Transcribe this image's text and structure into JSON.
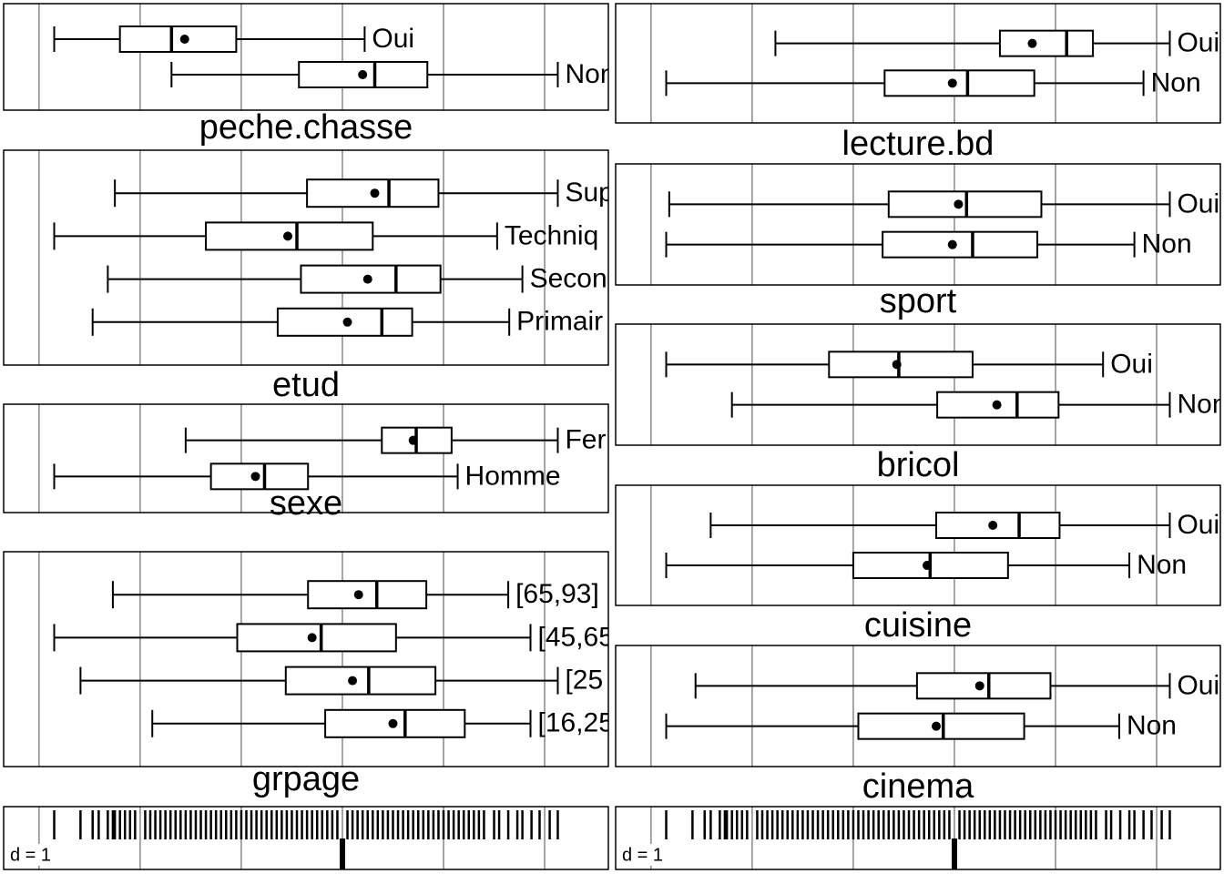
{
  "chart_data": {
    "type": "boxplot",
    "xlim": [
      -3.35,
      2.63
    ],
    "xticks": [
      -3,
      -2,
      -1,
      0,
      1,
      2
    ],
    "grid": true,
    "grid_label": "d = 1",
    "columns": [
      {
        "panels": [
          {
            "title": "peche.chasse",
            "categories": [
              "Oui",
              "Non"
            ],
            "min": [
              -2.85,
              -1.69
            ],
            "q1": [
              -2.2,
              -0.43
            ],
            "median": [
              -1.69,
              0.32
            ],
            "mean": [
              -1.56,
              0.2
            ],
            "q3": [
              -1.05,
              0.84
            ],
            "max": [
              0.22,
              2.13
            ]
          },
          {
            "title": "etud",
            "categories": [
              "Sup",
              "Techniq",
              "Secon",
              "Primair"
            ],
            "min": [
              -2.25,
              -2.85,
              -2.32,
              -2.47
            ],
            "q1": [
              -0.35,
              -1.35,
              -0.41,
              -0.64
            ],
            "median": [
              0.46,
              -0.45,
              0.53,
              0.39
            ],
            "mean": [
              0.32,
              -0.54,
              0.25,
              0.05
            ],
            "q3": [
              0.95,
              0.3,
              0.97,
              0.69
            ],
            "max": [
              2.13,
              1.53,
              1.78,
              1.65
            ]
          },
          {
            "title": "sexe",
            "categories": [
              "Fer",
              "Homme"
            ],
            "min": [
              -1.55,
              -2.85
            ],
            "q1": [
              0.39,
              -1.3
            ],
            "median": [
              0.73,
              -0.77
            ],
            "mean": [
              0.7,
              -0.86
            ],
            "q3": [
              1.08,
              -0.34
            ],
            "max": [
              2.13,
              1.14
            ]
          },
          {
            "title": "grpage",
            "categories": [
              "[65,93]",
              "[45,65",
              "[25",
              "[16,25"
            ],
            "min": [
              -2.27,
              -2.85,
              -2.59,
              -1.88
            ],
            "q1": [
              -0.34,
              -1.04,
              -0.56,
              -0.17
            ],
            "median": [
              0.34,
              -0.21,
              0.26,
              0.62
            ],
            "mean": [
              0.16,
              -0.3,
              0.1,
              0.5
            ],
            "q3": [
              0.83,
              0.53,
              0.92,
              1.21
            ],
            "max": [
              1.64,
              1.86,
              2.13,
              1.86
            ]
          }
        ]
      },
      {
        "panels": [
          {
            "title": "lecture.bd",
            "categories": [
              "Oui",
              "Non"
            ],
            "min": [
              -1.77,
              -2.85
            ],
            "q1": [
              0.45,
              -0.69
            ],
            "median": [
              1.11,
              0.13
            ],
            "mean": [
              0.77,
              -0.02
            ],
            "q3": [
              1.37,
              0.79
            ],
            "max": [
              2.13,
              1.87
            ]
          },
          {
            "title": "sport",
            "categories": [
              "Oui",
              "Non"
            ],
            "min": [
              -2.82,
              -2.85
            ],
            "q1": [
              -0.65,
              -0.71
            ],
            "median": [
              0.12,
              0.18
            ],
            "mean": [
              0.04,
              -0.02
            ],
            "q3": [
              0.86,
              0.82
            ],
            "max": [
              2.13,
              1.78
            ]
          },
          {
            "title": "bricol",
            "categories": [
              "Oui",
              "Non"
            ],
            "min": [
              -2.85,
              -2.2
            ],
            "q1": [
              -1.24,
              -0.17
            ],
            "median": [
              -0.55,
              0.62
            ],
            "mean": [
              -0.57,
              0.42
            ],
            "q3": [
              0.18,
              1.03
            ],
            "max": [
              1.47,
              2.13
            ]
          },
          {
            "title": "cuisine",
            "categories": [
              "Oui",
              "Non"
            ],
            "min": [
              -2.41,
              -2.85
            ],
            "q1": [
              -0.18,
              -1.0
            ],
            "median": [
              0.64,
              -0.24
            ],
            "mean": [
              0.38,
              -0.27
            ],
            "q3": [
              1.04,
              0.53
            ],
            "max": [
              2.13,
              1.73
            ]
          },
          {
            "title": "cinema",
            "categories": [
              "Oui",
              "Non"
            ],
            "min": [
              -2.56,
              -2.85
            ],
            "q1": [
              -0.37,
              -0.95
            ],
            "median": [
              0.34,
              -0.11
            ],
            "mean": [
              0.25,
              -0.18
            ],
            "q3": [
              0.95,
              0.69
            ],
            "max": [
              2.13,
              1.63
            ]
          }
        ]
      }
    ],
    "rug": [
      -2.85,
      -2.59,
      -2.47,
      -2.41,
      -2.32,
      -2.27,
      -2.25,
      -2.2,
      -2.15,
      -2.1,
      -2.05,
      -1.95,
      -1.9,
      -1.85,
      -1.8,
      -1.75,
      -1.7,
      -1.65,
      -1.6,
      -1.55,
      -1.5,
      -1.45,
      -1.4,
      -1.35,
      -1.3,
      -1.25,
      -1.2,
      -1.15,
      -1.1,
      -1.05,
      -1.0,
      -0.95,
      -0.9,
      -0.85,
      -0.8,
      -0.75,
      -0.7,
      -0.65,
      -0.6,
      -0.55,
      -0.5,
      -0.45,
      -0.4,
      -0.35,
      -0.3,
      -0.25,
      -0.2,
      -0.15,
      -0.1,
      -0.05,
      0.05,
      0.1,
      0.15,
      0.2,
      0.25,
      0.3,
      0.35,
      0.4,
      0.45,
      0.5,
      0.55,
      0.6,
      0.65,
      0.7,
      0.75,
      0.8,
      0.85,
      0.9,
      0.95,
      1.0,
      1.05,
      1.1,
      1.15,
      1.2,
      1.25,
      1.3,
      1.35,
      1.4,
      1.5,
      1.55,
      1.64,
      1.73,
      1.78,
      1.87,
      1.95,
      2.05,
      2.13
    ]
  }
}
